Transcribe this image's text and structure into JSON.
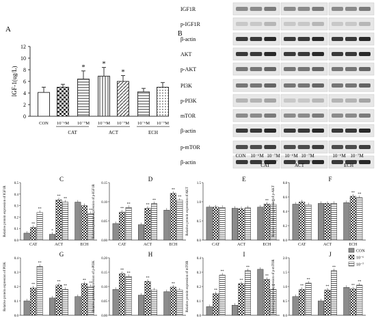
{
  "panelA": {
    "letter": "A",
    "ylabel": "IGF-1(ug/L)",
    "yticks": [
      "0",
      "2",
      "4",
      "6",
      "8",
      "10",
      "12"
    ],
    "bars": [
      {
        "label": "CON",
        "value": 4.1,
        "err": 0.9,
        "star": ""
      },
      {
        "label": "10⁻⁶M",
        "value": 5.0,
        "err": 0.5,
        "star": ""
      },
      {
        "label": "10⁻⁷M",
        "value": 6.4,
        "err": 1.4,
        "star": "*"
      },
      {
        "label": "10⁻⁶M",
        "value": 6.9,
        "err": 1.5,
        "star": "*"
      },
      {
        "label": "10⁻⁷M",
        "value": 6.0,
        "err": 1.0,
        "star": "*"
      },
      {
        "label": "10⁻⁶M",
        "value": 4.2,
        "err": 0.6,
        "star": ""
      },
      {
        "label": "10⁻⁷M",
        "value": 5.0,
        "err": 0.8,
        "star": ""
      }
    ],
    "groups": [
      "CAT",
      "ACT",
      "ECH"
    ]
  },
  "panelB": {
    "letter": "B",
    "rows": [
      "IGF1R",
      "p-IGF1R",
      "β-actin",
      "AKT",
      "p-AKT",
      "PI3K",
      "p-PI3K",
      "mTOR",
      "β-actin",
      "p-mTOR",
      "β-actin"
    ],
    "lane_labels": [
      "CON",
      "10⁻⁶M",
      "10⁻⁷M",
      "10⁻⁶M",
      "10⁻⁷M",
      "10⁻⁶M",
      "10⁻⁷M"
    ],
    "groups": [
      "CAT",
      "ACT",
      "ECH"
    ]
  },
  "legend": {
    "items": [
      "CON",
      "10⁻⁶",
      "10⁻⁷"
    ]
  },
  "chart_data": [
    {
      "type": "bar",
      "letter": "A",
      "title": "",
      "xlabel": "",
      "ylabel": "IGF-1(ug/L)",
      "ylim": [
        0,
        12
      ],
      "categories": [
        "CON",
        "CAT 10⁻⁶M",
        "CAT 10⁻⁷M",
        "ACT 10⁻⁶M",
        "ACT 10⁻⁷M",
        "ECH 10⁻⁶M",
        "ECH 10⁻⁷M"
      ],
      "values": [
        4.1,
        5.0,
        6.4,
        6.9,
        6.0,
        4.2,
        5.0
      ]
    },
    {
      "type": "bar",
      "letter": "C",
      "ylabel": "Relative protein expression of IGF1R",
      "ylim": [
        0,
        0.5
      ],
      "yticks": [
        "0.0",
        "0.1",
        "0.2",
        "0.3",
        "0.4",
        "0.5"
      ],
      "categories": [
        "CAT",
        "ACT",
        "ECH"
      ],
      "series": [
        {
          "name": "CON",
          "values": [
            0.06,
            0.05,
            0.33
          ]
        },
        {
          "name": "10⁻⁶",
          "values": [
            0.11,
            0.35,
            0.3
          ]
        },
        {
          "name": "10⁻⁷",
          "values": [
            0.24,
            0.33,
            0.23
          ]
        }
      ],
      "marks": [
        [
          "",
          "*",
          ""
        ],
        [
          "**",
          "**",
          ""
        ],
        [
          "**",
          "**",
          "**"
        ]
      ]
    },
    {
      "type": "bar",
      "letter": "D",
      "ylabel": "Relative protein expression of p-IGF1R",
      "ylim": [
        0,
        0.15
      ],
      "yticks": [
        "0.00",
        "0.05",
        "0.10",
        "0.15"
      ],
      "categories": [
        "CAT",
        "ACT",
        "ECH"
      ],
      "series": [
        {
          "name": "CON",
          "values": [
            0.043,
            0.04,
            0.078
          ]
        },
        {
          "name": "10⁻⁶",
          "values": [
            0.073,
            0.083,
            0.122
          ]
        },
        {
          "name": "10⁻⁷",
          "values": [
            0.085,
            0.095,
            0.104
          ]
        }
      ],
      "marks": [
        [
          "",
          "",
          ""
        ],
        [
          "**",
          "**",
          "**"
        ],
        [
          "**",
          "**",
          "**"
        ]
      ]
    },
    {
      "type": "bar",
      "letter": "E",
      "ylabel": "Relative protein expression of AKT",
      "ylim": [
        0,
        1.5
      ],
      "yticks": [
        "0.0",
        "0.5",
        "1.0",
        "1.5"
      ],
      "categories": [
        "CAT",
        "ACT",
        "ECH"
      ],
      "series": [
        {
          "name": "CON",
          "values": [
            0.86,
            0.83,
            0.86
          ]
        },
        {
          "name": "10⁻⁶",
          "values": [
            0.86,
            0.82,
            0.94
          ]
        },
        {
          "name": "10⁻⁷",
          "values": [
            0.85,
            0.84,
            0.93
          ]
        }
      ],
      "marks": [
        [
          "",
          "",
          ""
        ],
        [
          "",
          "",
          "**"
        ],
        [
          "",
          "",
          "**"
        ]
      ]
    },
    {
      "type": "bar",
      "letter": "F",
      "ylabel": "Relative protein expression of p-AKT",
      "ylim": [
        0,
        0.8
      ],
      "yticks": [
        "0.0",
        "0.2",
        "0.4",
        "0.6",
        "0.8"
      ],
      "categories": [
        "CAT",
        "ACT",
        "ECH"
      ],
      "series": [
        {
          "name": "CON",
          "values": [
            0.5,
            0.51,
            0.52
          ]
        },
        {
          "name": "10⁻⁶",
          "values": [
            0.53,
            0.51,
            0.61
          ]
        },
        {
          "name": "10⁻⁷",
          "values": [
            0.49,
            0.51,
            0.59
          ]
        }
      ],
      "marks": [
        [
          "",
          "",
          ""
        ],
        [
          "",
          "",
          "**"
        ],
        [
          "",
          "",
          "**"
        ]
      ]
    },
    {
      "type": "bar",
      "letter": "G",
      "ylabel": "Relative protein expression of PI3K",
      "ylim": [
        0,
        0.4
      ],
      "yticks": [
        "0.0",
        "0.1",
        "0.2",
        "0.3",
        "0.4"
      ],
      "categories": [
        "CAT",
        "ACT",
        "ECH"
      ],
      "series": [
        {
          "name": "CON",
          "values": [
            0.1,
            0.12,
            0.13
          ]
        },
        {
          "name": "10⁻⁶",
          "values": [
            0.19,
            0.21,
            0.22
          ]
        },
        {
          "name": "10⁻⁷",
          "values": [
            0.34,
            0.18,
            0.2
          ]
        }
      ],
      "marks": [
        [
          "",
          "",
          ""
        ],
        [
          "**",
          "**",
          "**"
        ],
        [
          "**",
          "**",
          "**"
        ]
      ]
    },
    {
      "type": "bar",
      "letter": "H",
      "ylabel": "Relative protein expression of p-PI3K",
      "ylim": [
        0,
        0.2
      ],
      "yticks": [
        "0.00",
        "0.05",
        "0.10",
        "0.15",
        "0.20"
      ],
      "categories": [
        "CAT",
        "ACT",
        "ECH"
      ],
      "series": [
        {
          "name": "CON",
          "values": [
            0.09,
            0.07,
            0.082
          ]
        },
        {
          "name": "10⁻⁶",
          "values": [
            0.145,
            0.118,
            0.098
          ]
        },
        {
          "name": "10⁻⁷",
          "values": [
            0.135,
            0.088,
            0.088
          ]
        }
      ],
      "marks": [
        [
          "",
          "",
          ""
        ],
        [
          "**",
          "**",
          "**"
        ],
        [
          "**",
          "",
          ""
        ]
      ]
    },
    {
      "type": "bar",
      "letter": "I",
      "ylabel": "Relative protein expression of mTOR",
      "ylim": [
        0,
        0.4
      ],
      "yticks": [
        "0.0",
        "0.1",
        "0.2",
        "0.3",
        "0.4"
      ],
      "categories": [
        "CAT",
        "ACT",
        "ECH"
      ],
      "series": [
        {
          "name": "CON",
          "values": [
            0.06,
            0.07,
            0.32
          ]
        },
        {
          "name": "10⁻⁶",
          "values": [
            0.15,
            0.22,
            0.25
          ]
        },
        {
          "name": "10⁻⁷",
          "values": [
            0.28,
            0.31,
            0.18
          ]
        }
      ],
      "marks": [
        [
          "",
          "",
          ""
        ],
        [
          "**",
          "**",
          "**"
        ],
        [
          "**",
          "**",
          "**"
        ]
      ]
    },
    {
      "type": "bar",
      "letter": "J",
      "ylabel": "Relative protein expression of p-mTOR",
      "ylim": [
        0,
        2.0
      ],
      "yticks": [
        "0.0",
        "0.5",
        "1.0",
        "1.5",
        "2.0"
      ],
      "categories": [
        "CAT",
        "ACT",
        "ECH"
      ],
      "series": [
        {
          "name": "CON",
          "values": [
            0.65,
            0.5,
            0.97
          ]
        },
        {
          "name": "10⁻⁶",
          "values": [
            0.9,
            0.88,
            0.92
          ]
        },
        {
          "name": "10⁻⁷",
          "values": [
            1.12,
            1.55,
            1.05
          ]
        }
      ],
      "marks": [
        [
          "",
          "",
          ""
        ],
        [
          "**",
          "**",
          "**"
        ],
        [
          "**",
          "**",
          "**"
        ]
      ]
    }
  ]
}
